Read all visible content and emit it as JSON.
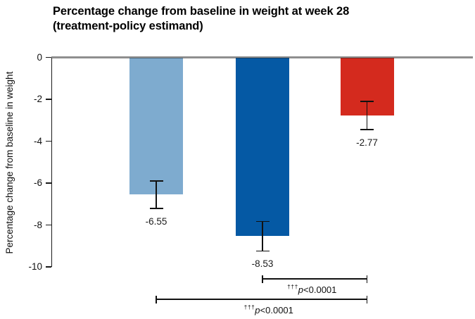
{
  "chart_data": {
    "type": "bar",
    "title": "Percentage change from baseline in weight at week 28\n(treatment-policy estimand)",
    "ylabel": "Percentage change from baseline in weight",
    "xlabel": "",
    "ylim": [
      -10,
      0
    ],
    "yticks": [
      0,
      -2,
      -4,
      -6,
      -8,
      -10
    ],
    "grid": false,
    "legend": "none",
    "bars": [
      {
        "name": "light-blue-bar",
        "value": -6.55,
        "label": "-6.55",
        "error": 0.65,
        "color": "#7EABCF"
      },
      {
        "name": "dark-blue-bar",
        "value": -8.53,
        "label": "-8.53",
        "error": 0.7,
        "color": "#0559A4"
      },
      {
        "name": "red-bar",
        "value": -2.77,
        "label": "-2.77",
        "error": 0.67,
        "color": "#D42A1E"
      }
    ],
    "comparisons": [
      {
        "between": [
          1,
          2
        ],
        "sup": "†††",
        "p": "p",
        "rest": "<0.0001"
      },
      {
        "between": [
          0,
          2
        ],
        "sup": "†††",
        "p": "p",
        "rest": "<0.0001"
      }
    ]
  }
}
